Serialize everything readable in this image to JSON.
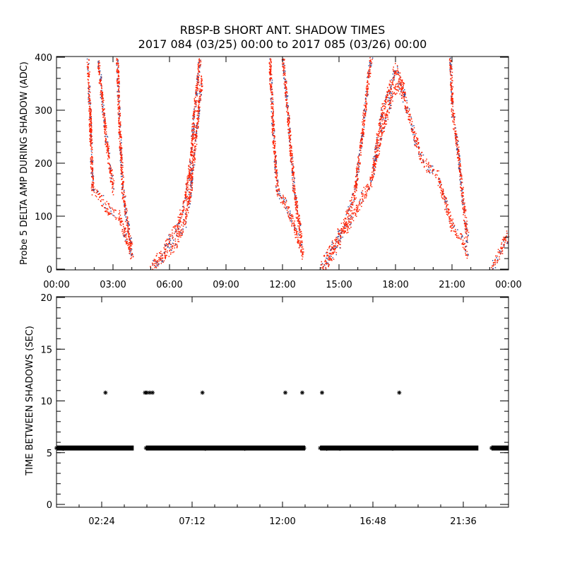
{
  "chart_data": [
    {
      "type": "scatter",
      "title": "RBSP-B SHORT ANT. SHADOW TIMES",
      "subtitle": "2017 084 (03/25) 00:00 to 2017 085 (03/26) 00:00",
      "xlabel": "",
      "ylabel": "Probe 5 DELTA AMP DURING SHADOW (ADC)",
      "xlim_hours": [
        0,
        24
      ],
      "ylim": [
        0,
        400
      ],
      "x_tick_labels": [
        "00:00",
        "03:00",
        "06:00",
        "09:00",
        "12:00",
        "15:00",
        "18:00",
        "21:00",
        "00:00"
      ],
      "x_tick_hours": [
        0,
        3,
        6,
        9,
        12,
        15,
        18,
        21,
        24
      ],
      "y_tick_labels": [
        "0",
        "100",
        "200",
        "300",
        "400"
      ],
      "y_ticks": [
        0,
        100,
        200,
        300,
        400
      ],
      "colors": {
        "primary": "#ff2000",
        "secondary": "#3050a0"
      },
      "traces_hours_adc": [
        [
          [
            1.65,
            400
          ],
          [
            1.8,
            250
          ],
          [
            1.9,
            150
          ],
          [
            2.3,
            135
          ],
          [
            2.7,
            115
          ],
          [
            3.3,
            100
          ],
          [
            3.7,
            55
          ],
          [
            4.0,
            25
          ]
        ],
        [
          [
            2.2,
            400
          ],
          [
            2.4,
            320
          ],
          [
            2.6,
            250
          ],
          [
            2.8,
            200
          ],
          [
            3.0,
            150
          ]
        ],
        [
          [
            3.2,
            400
          ],
          [
            3.35,
            250
          ],
          [
            3.5,
            150
          ],
          [
            3.8,
            70
          ],
          [
            4.0,
            35
          ]
        ],
        [
          [
            5.0,
            5
          ],
          [
            5.5,
            25
          ],
          [
            6.0,
            60
          ],
          [
            6.4,
            80
          ],
          [
            6.8,
            130
          ],
          [
            7.1,
            200
          ],
          [
            7.3,
            300
          ],
          [
            7.6,
            400
          ]
        ],
        [
          [
            5.2,
            5
          ],
          [
            5.8,
            30
          ],
          [
            6.3,
            50
          ],
          [
            6.8,
            90
          ],
          [
            7.1,
            150
          ],
          [
            7.4,
            260
          ],
          [
            7.7,
            360
          ]
        ],
        [
          [
            11.3,
            400
          ],
          [
            11.5,
            250
          ],
          [
            11.7,
            150
          ],
          [
            12.2,
            120
          ],
          [
            12.8,
            60
          ],
          [
            13.1,
            25
          ]
        ],
        [
          [
            12.0,
            400
          ],
          [
            12.3,
            280
          ],
          [
            12.6,
            150
          ],
          [
            13.0,
            50
          ]
        ],
        [
          [
            14.0,
            5
          ],
          [
            14.6,
            40
          ],
          [
            15.3,
            90
          ],
          [
            15.8,
            140
          ],
          [
            16.2,
            250
          ],
          [
            16.5,
            350
          ],
          [
            16.7,
            400
          ]
        ],
        [
          [
            14.2,
            5
          ],
          [
            15.0,
            50
          ],
          [
            16.0,
            120
          ],
          [
            16.7,
            170
          ],
          [
            17.2,
            250
          ],
          [
            17.8,
            330
          ],
          [
            18.2,
            350
          ],
          [
            18.6,
            300
          ],
          [
            19.0,
            250
          ],
          [
            19.5,
            200
          ],
          [
            20.2,
            180
          ],
          [
            20.6,
            130
          ],
          [
            21.0,
            80
          ],
          [
            21.5,
            60
          ],
          [
            21.8,
            30
          ]
        ],
        [
          [
            16.8,
            200
          ],
          [
            17.3,
            300
          ],
          [
            18.0,
            380
          ],
          [
            18.5,
            330
          ]
        ],
        [
          [
            20.9,
            400
          ],
          [
            21.0,
            300
          ],
          [
            21.3,
            220
          ],
          [
            21.6,
            120
          ],
          [
            21.8,
            60
          ]
        ],
        [
          [
            23.1,
            5
          ],
          [
            23.5,
            30
          ],
          [
            24.0,
            70
          ]
        ]
      ]
    },
    {
      "type": "scatter",
      "xlabel": "",
      "ylabel": "TIME BETWEEN SHADOWS (SEC)",
      "xlim_hours": [
        0,
        24
      ],
      "ylim": [
        0,
        20
      ],
      "x_tick_labels": [
        "02:24",
        "07:12",
        "12:00",
        "16:48",
        "21:36"
      ],
      "x_tick_hours": [
        2.4,
        7.2,
        12.0,
        16.8,
        21.6
      ],
      "y_tick_labels": [
        "0",
        "5",
        "10",
        "15",
        "20"
      ],
      "y_ticks": [
        0,
        5,
        10,
        15,
        20
      ],
      "baseline_value": 5.45,
      "baseline_segments_hours": [
        [
          0,
          4.1
        ],
        [
          4.75,
          13.2
        ],
        [
          14.0,
          22.4
        ],
        [
          23.1,
          24
        ]
      ],
      "outliers": [
        [
          2.6,
          10.8
        ],
        [
          4.7,
          10.8
        ],
        [
          4.8,
          10.8
        ],
        [
          4.95,
          10.8
        ],
        [
          5.1,
          10.8
        ],
        [
          7.75,
          10.8
        ],
        [
          12.15,
          10.8
        ],
        [
          13.05,
          10.8
        ],
        [
          14.1,
          10.8
        ],
        [
          18.2,
          10.8
        ]
      ]
    }
  ]
}
